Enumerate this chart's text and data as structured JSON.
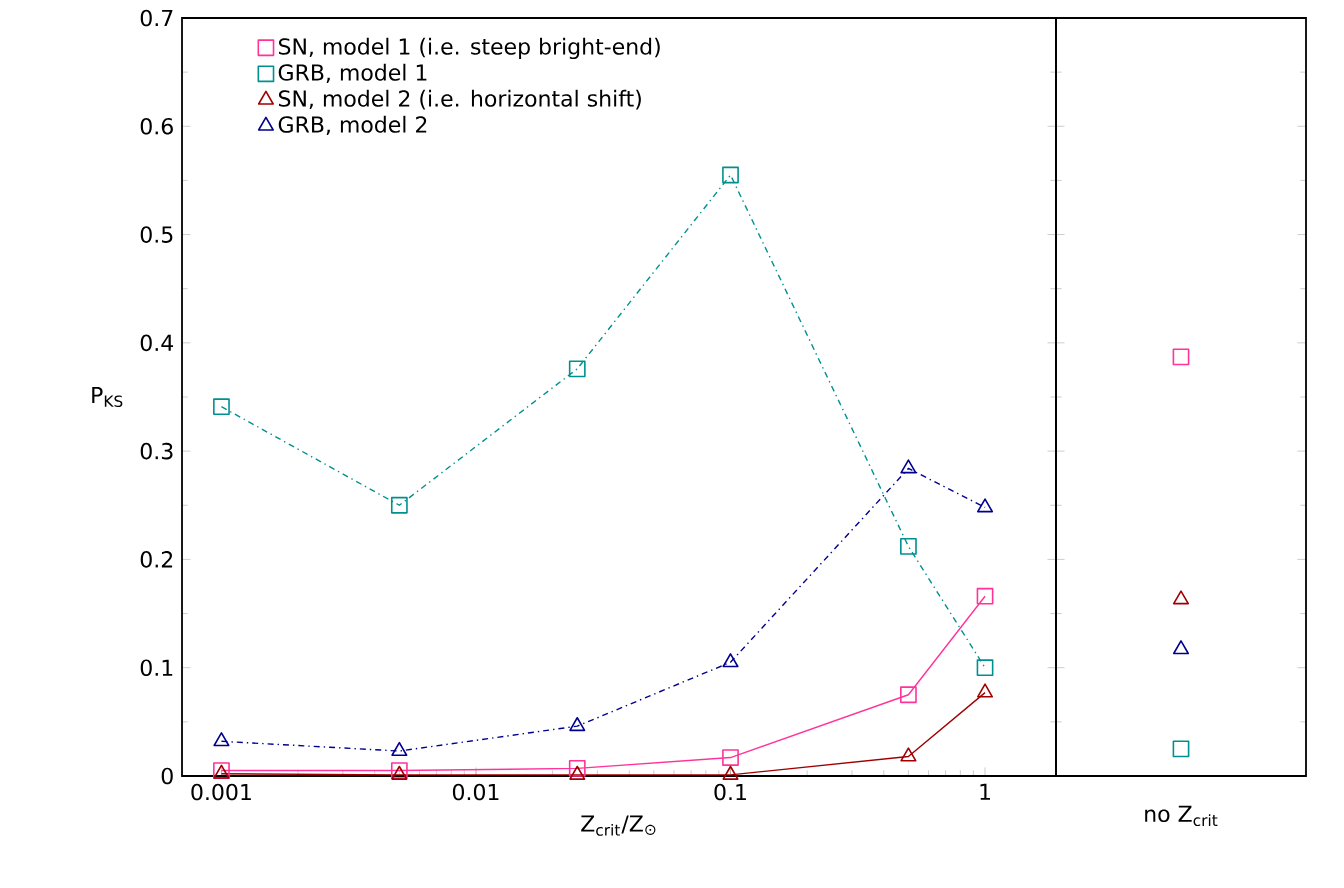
{
  "chart_data": [
    {
      "type": "line",
      "xlabel": "Z$_{crit}$/Z$_{⊙}$",
      "ylabel": "P$_{KS}$",
      "log": "x",
      "x": [
        0.001,
        0.005,
        0.025,
        0.1,
        0.5,
        1
      ],
      "xlim": [
        0.0007,
        1.9
      ],
      "xticks": [
        0.001,
        0.01,
        0.1,
        1
      ],
      "ylim": [
        0,
        0.7
      ],
      "yticks": [
        0,
        0.1,
        0.2,
        0.3,
        0.4,
        0.5,
        0.6,
        0.7
      ],
      "legend": "top left",
      "series": [
        {
          "name": "SN, model 1 (i.e. steep bright-end)",
          "color": "#ff3399",
          "marker": "square",
          "line_style": "solid",
          "values": [
            0.005,
            0.005,
            0.007,
            0.017,
            0.075,
            0.166
          ]
        },
        {
          "name": "GRB, model 1",
          "color": "#009090",
          "marker": "square",
          "line_style": "dashdot",
          "values": [
            0.341,
            0.25,
            0.376,
            0.555,
            0.212,
            0.1
          ]
        },
        {
          "name": "SN, model 2 (i.e. horizontal shift)",
          "color": "#a00000",
          "marker": "triangle",
          "line_style": "solid",
          "values": [
            0.002,
            0.001,
            0.001,
            0.001,
            0.018,
            0.077
          ]
        },
        {
          "name": "GRB, model 2",
          "color": "#000090",
          "marker": "triangle",
          "line_style": "dashdot",
          "values": [
            0.032,
            0.023,
            0.046,
            0.105,
            0.284,
            0.248
          ]
        }
      ]
    },
    {
      "type": "scatter",
      "categories": [
        "no Z$_{crit}$"
      ],
      "ylim": [
        0,
        0.7
      ],
      "yticks": [
        0,
        0.1,
        0.2,
        0.3,
        0.4,
        0.5,
        0.6,
        0.7
      ],
      "tick_labels": "x",
      "series": [
        {
          "color": "#ff3399",
          "marker": "square",
          "values": [
            0.387
          ]
        },
        {
          "color": "#009090",
          "marker": "square",
          "values": [
            0.025
          ]
        },
        {
          "color": "#a00000",
          "marker": "triangle",
          "values": [
            0.163
          ]
        },
        {
          "color": "#000090",
          "marker": "triangle",
          "values": [
            0.117
          ]
        }
      ]
    }
  ]
}
